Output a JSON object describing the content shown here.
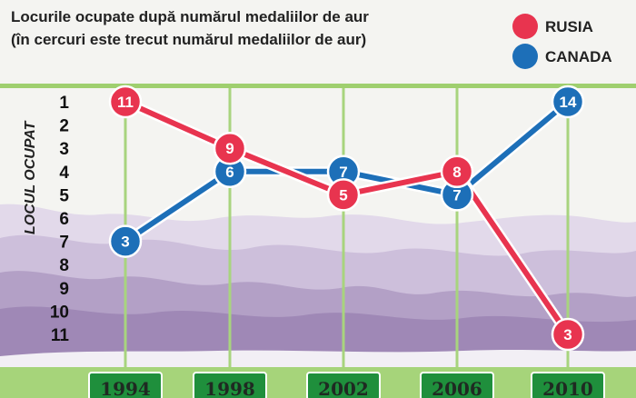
{
  "chart_data": {
    "type": "line",
    "title": [
      "Locurile ocupate după numărul medaliilor de aur",
      "(în cercuri este trecut numărul medaliilor de aur)"
    ],
    "ylabel": "LOCUL OCUPAT",
    "xlabel": "",
    "categories": [
      "1994",
      "1998",
      "2002",
      "2006",
      "2010"
    ],
    "y_ticks": [
      "1",
      "2",
      "3",
      "4",
      "5",
      "6",
      "7",
      "8",
      "9",
      "10",
      "11"
    ],
    "ylim": [
      1,
      11
    ],
    "y_inverted": true,
    "legend_position": "top-right",
    "series": [
      {
        "name": "RUSIA",
        "color": "#e8344f",
        "values": [
          1,
          3,
          5,
          4,
          11
        ],
        "gold_medals": [
          "11",
          "9",
          "5",
          "8",
          "3"
        ]
      },
      {
        "name": "CANADA",
        "color": "#1d6fb8",
        "values": [
          7,
          4,
          4,
          5,
          1
        ],
        "gold_medals": [
          "3",
          "6",
          "7",
          "7",
          "14"
        ]
      }
    ]
  }
}
